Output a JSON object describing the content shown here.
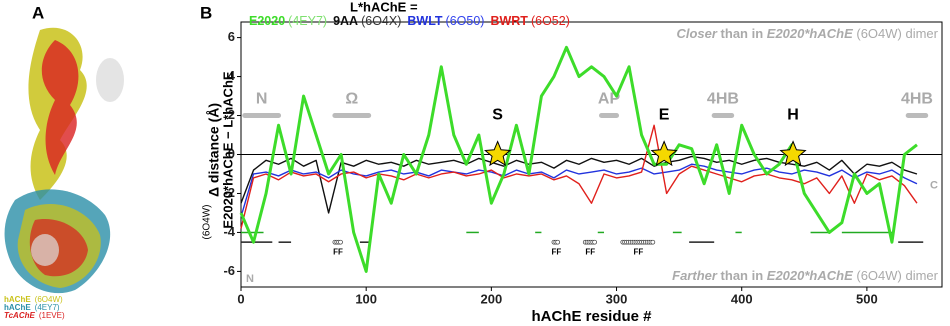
{
  "panel_a": {
    "label": "A",
    "legend": [
      {
        "name": "hAChE",
        "pdb": "(6O4W)",
        "color": "#c9c21a"
      },
      {
        "name": "hAChE",
        "pdb": "(4EY7)",
        "color": "#2a8fa8"
      },
      {
        "name": "TcAChE",
        "pdb": "(1EVE)",
        "color": "#d92020"
      }
    ]
  },
  "chart_data": {
    "type": "line",
    "panel_label": "B",
    "legend_title": "L*hAChE =",
    "xlabel": "hAChE residue #",
    "ylabel": [
      "Δ distance (Å)",
      "E2020*hAChE − L*hAChE",
      "(6O4W)"
    ],
    "top_note": [
      "Closer",
      " than in ",
      "E2020*hAChE",
      " (6O4W) dimer"
    ],
    "bottom_note": [
      "Farther",
      " than in ",
      "E2020*hAChE",
      " (6O4W) dimer"
    ],
    "xlim": [
      0,
      560
    ],
    "ylim": [
      -6.8,
      6.8
    ],
    "xticks": [
      0,
      100,
      200,
      300,
      400,
      500
    ],
    "yticks": [
      -6,
      -4,
      -2,
      0,
      2,
      4,
      6
    ],
    "x": [
      0,
      10,
      20,
      30,
      40,
      50,
      60,
      70,
      80,
      90,
      100,
      110,
      120,
      130,
      140,
      150,
      160,
      170,
      180,
      190,
      200,
      210,
      220,
      230,
      240,
      250,
      260,
      270,
      280,
      290,
      300,
      310,
      320,
      330,
      340,
      350,
      360,
      370,
      380,
      390,
      400,
      410,
      420,
      430,
      440,
      450,
      460,
      470,
      480,
      490,
      500,
      510,
      520,
      530,
      540
    ],
    "series": [
      {
        "name": "E2020",
        "pdb": "(4EY7)",
        "color": "#3ddc2a",
        "pdb_color": "#7ee06f",
        "width": 3,
        "values": [
          -3,
          -4.5,
          -2,
          1.5,
          -1,
          3,
          1,
          -1,
          0,
          -4,
          -6,
          -1,
          -2.5,
          0,
          -1,
          1,
          4.5,
          1,
          -0.5,
          1,
          -2.5,
          -1,
          1.5,
          -1,
          3,
          4,
          5.5,
          4,
          4.5,
          4,
          3,
          4.5,
          1,
          -0.5,
          -0.5,
          0.5,
          0.3,
          -1.5,
          0.5,
          -2,
          1.5,
          0,
          -1,
          -0.5,
          0.5,
          -2,
          -3,
          -4,
          -3.5,
          -1,
          -2,
          -1.5,
          -4.5,
          0,
          0.5
        ]
      },
      {
        "name": "9AA",
        "pdb": "(6O4X)",
        "color": "#111111",
        "pdb_color": "#333333",
        "width": 1.4,
        "values": [
          -2.5,
          -0.8,
          -0.3,
          -0.5,
          -0.2,
          -0.6,
          -0.3,
          -3.0,
          -0.4,
          -0.6,
          -0.3,
          -0.5,
          -0.4,
          -0.6,
          -0.3,
          -0.5,
          -0.4,
          -0.3,
          -0.5,
          -0.2,
          -0.4,
          -0.6,
          -0.3,
          -0.5,
          -0.4,
          -0.7,
          -0.3,
          -0.5,
          -0.2,
          -0.4,
          -0.3,
          -0.5,
          -0.2,
          -0.6,
          -0.4,
          -0.3,
          -0.1,
          -0.2,
          -0.4,
          -0.3,
          -0.5,
          -0.3,
          -0.2,
          -0.4,
          -0.5,
          -0.6,
          -0.4,
          -0.8,
          -0.3,
          -1.0,
          -0.5,
          -0.6,
          -0.4,
          -0.8,
          -1.0
        ]
      },
      {
        "name": "BWLT",
        "pdb": "(6O50)",
        "color": "#2233dd",
        "pdb_color": "#3344ee",
        "width": 1.4,
        "values": [
          -3.2,
          -1.0,
          -0.9,
          -1.1,
          -0.8,
          -1.0,
          -0.9,
          -1.2,
          -0.8,
          -1.0,
          -1.1,
          -0.9,
          -0.8,
          -1.0,
          -0.9,
          -1.1,
          -0.8,
          -0.9,
          -1.0,
          -0.8,
          -0.9,
          -1.1,
          -0.8,
          -1.0,
          -0.9,
          -1.2,
          -0.8,
          -1.0,
          -0.9,
          -0.8,
          -1.0,
          -0.9,
          -0.7,
          -1.0,
          -0.9,
          -0.8,
          -0.5,
          -0.6,
          -0.8,
          -0.9,
          -1.0,
          -0.8,
          -0.7,
          -0.9,
          -1.0,
          -0.8,
          -0.9,
          -1.1,
          -0.8,
          -1.2,
          -0.9,
          -1.0,
          -0.8,
          -1.2,
          -1.5
        ]
      },
      {
        "name": "BWRT",
        "pdb": "(6O52)",
        "color": "#e0201c",
        "pdb_color": "#e0201c",
        "width": 1.4,
        "values": [
          -3.8,
          -1.2,
          -1.0,
          -1.3,
          -0.9,
          -1.1,
          -1.0,
          -1.4,
          -1.0,
          -0.9,
          -1.2,
          -1.0,
          -1.1,
          -1.3,
          -1.0,
          -1.2,
          -1.0,
          -0.9,
          -1.1,
          -1.0,
          -0.8,
          -1.2,
          -1.0,
          -1.1,
          -1.0,
          -1.3,
          -1.1,
          -1.5,
          -2.5,
          -1.0,
          -1.2,
          -1.1,
          -0.9,
          1.5,
          -2.0,
          -1.0,
          -0.6,
          -0.8,
          -1.0,
          -1.2,
          -1.4,
          -1.1,
          -1.0,
          -1.2,
          -1.3,
          -1.5,
          -1.2,
          -2.0,
          -1.1,
          -2.5,
          -1.0,
          -1.3,
          -1.1,
          -1.6,
          -2.5
        ]
      }
    ],
    "regions": [
      {
        "label": "N",
        "x0": 3,
        "x1": 30
      },
      {
        "label": "Ω",
        "x0": 75,
        "x1": 102
      },
      {
        "label": "AP",
        "x0": 288,
        "x1": 300
      },
      {
        "label": "4HB",
        "x0": 378,
        "x1": 392
      },
      {
        "label": "4HB",
        "x0": 533,
        "x1": 547
      }
    ],
    "sites": [
      {
        "label": "S",
        "x": 205
      },
      {
        "label": "E",
        "x": 338
      },
      {
        "label": "H",
        "x": 441
      }
    ],
    "ends": [
      "N",
      "C"
    ],
    "ff_labels": [
      "FF",
      "FF",
      "FF",
      "FF"
    ]
  }
}
